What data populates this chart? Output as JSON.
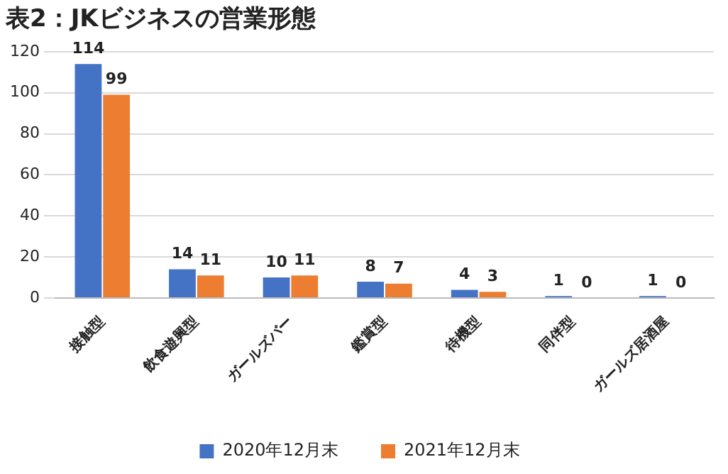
{
  "chart_data": {
    "type": "bar",
    "title": "表2：JKビジネスの営業形態",
    "categories": [
      "接触型",
      "飲食遊興型",
      "ガールズバー",
      "鑑賞型",
      "待機型",
      "同伴型",
      "ガールズ居酒屋"
    ],
    "series": [
      {
        "name": "2020年12月末",
        "color": "#4472c4",
        "values": [
          114,
          14,
          10,
          8,
          4,
          1,
          1
        ]
      },
      {
        "name": "2021年12月末",
        "color": "#ed7d31",
        "values": [
          99,
          11,
          11,
          7,
          3,
          0,
          0
        ]
      }
    ],
    "ylim": [
      0,
      120
    ],
    "yticks": [
      0,
      20,
      40,
      60,
      80,
      100,
      120
    ],
    "grid": "y",
    "legend": "bottom",
    "data_labels": true
  }
}
